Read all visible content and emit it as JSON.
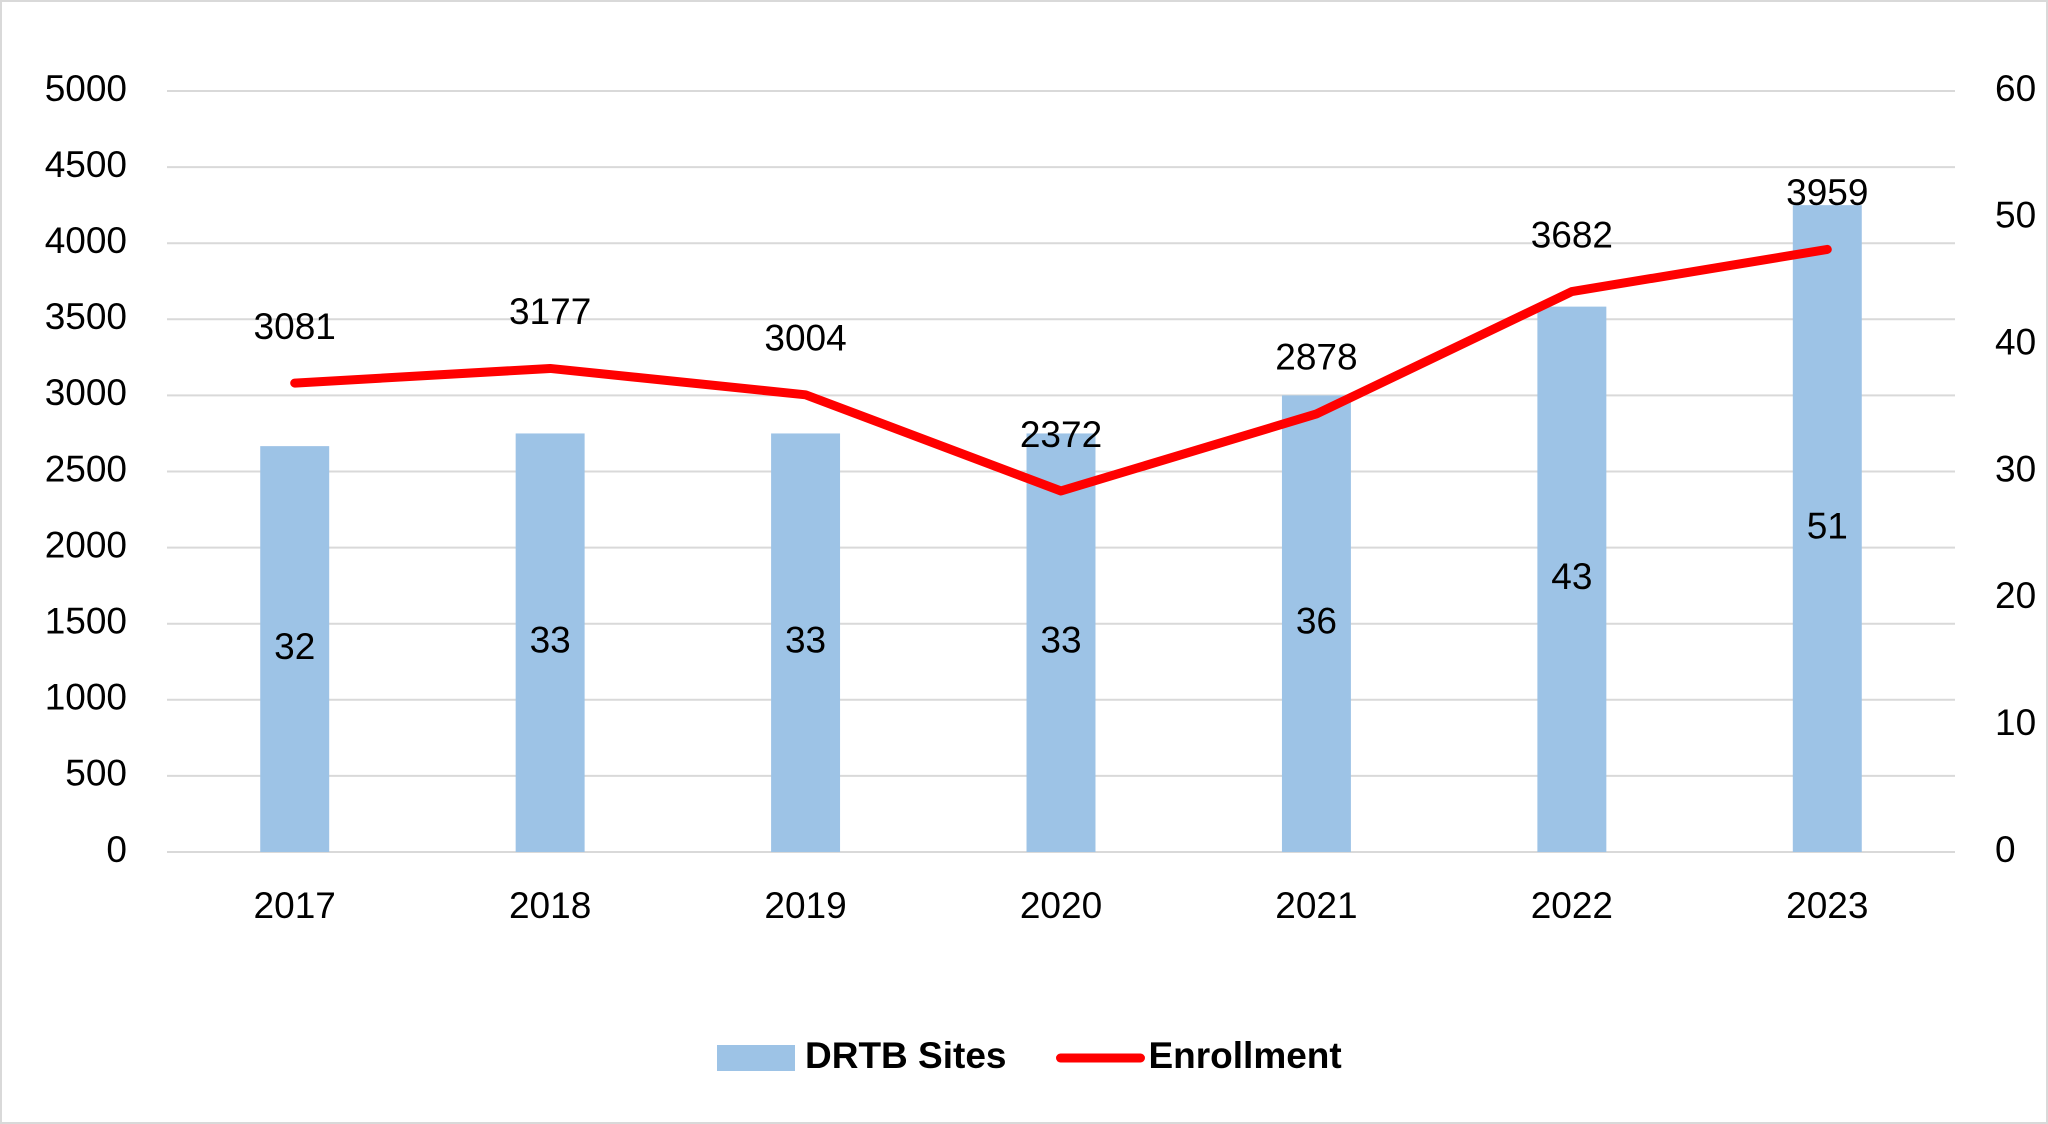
{
  "chart_data": {
    "type": "bar",
    "categories": [
      "2017",
      "2018",
      "2019",
      "2020",
      "2021",
      "2022",
      "2023"
    ],
    "series": [
      {
        "name": "DRTB Sites",
        "type": "bar",
        "axis": "y2",
        "color": "#9dc3e6",
        "values": [
          32,
          33,
          33,
          33,
          36,
          43,
          51
        ]
      },
      {
        "name": "Enrollment",
        "type": "line",
        "color": "#ff0000",
        "values": [
          3081,
          3177,
          3004,
          2372,
          2878,
          3682,
          3959
        ]
      }
    ],
    "ylim": [
      0,
      5000
    ],
    "yticks": [
      0,
      500,
      1000,
      1500,
      2000,
      2500,
      3000,
      3500,
      4000,
      4500,
      5000
    ],
    "y2lim": [
      0,
      60
    ],
    "y2ticks": [
      0,
      10,
      20,
      30,
      40,
      50,
      60
    ],
    "grid": true,
    "legend": "bottom"
  }
}
